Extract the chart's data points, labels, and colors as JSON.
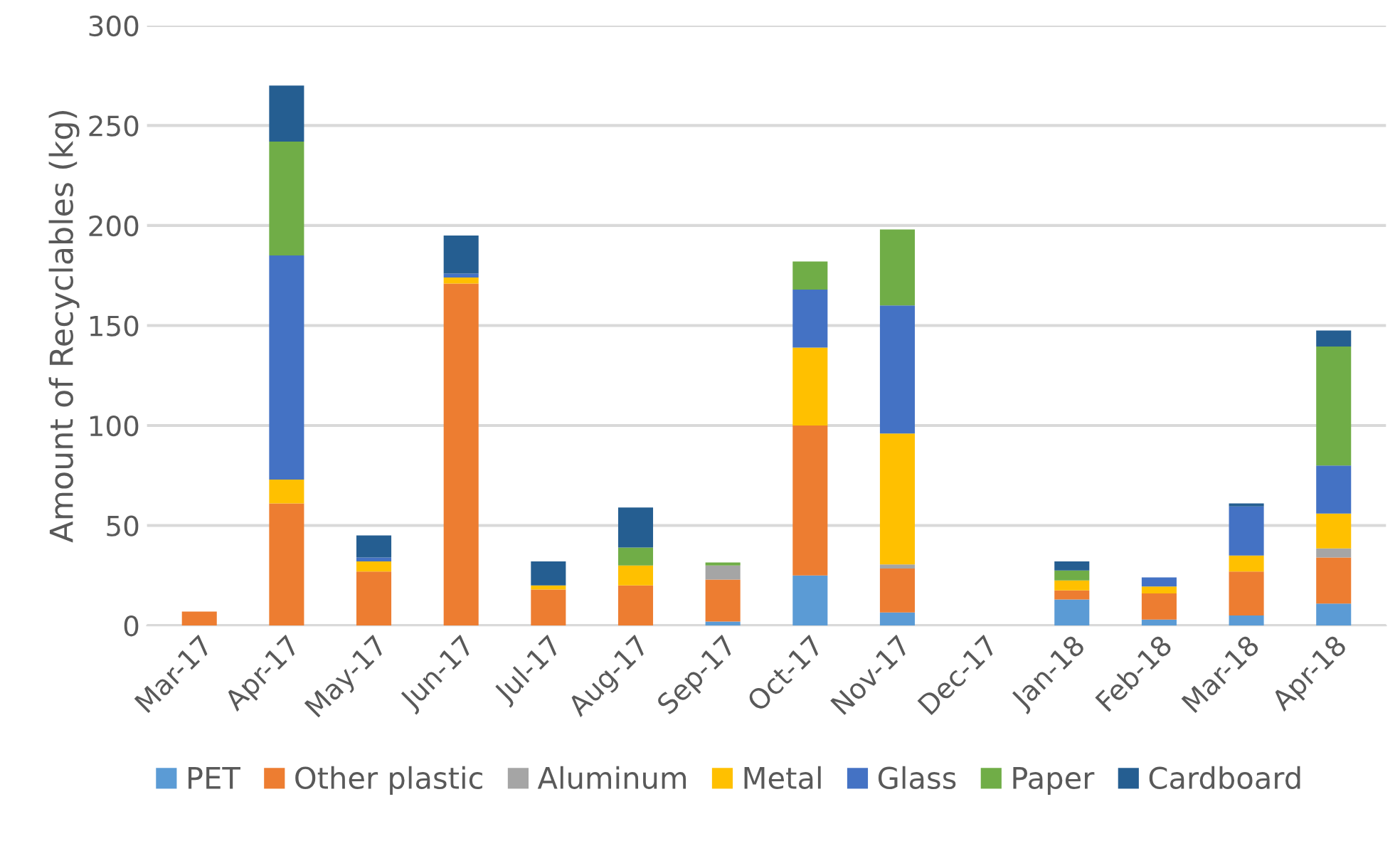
{
  "chart_data": {
    "type": "bar",
    "stacked": true,
    "ylabel": "Amount of Recyclables (kg)",
    "categories": [
      "Mar-17",
      "Apr-17",
      "May-17",
      "Jun-17",
      "Jul-17",
      "Aug-17",
      "Sep-17",
      "Oct-17",
      "Nov-17",
      "Dec-17",
      "Jan-18",
      "Feb-18",
      "Mar-18",
      "Apr-18"
    ],
    "series": [
      {
        "name": "PET",
        "color": "#5b9bd5",
        "values": [
          0,
          0,
          0,
          0,
          0,
          0,
          2,
          25,
          6.5,
          0,
          13,
          3,
          5,
          11
        ]
      },
      {
        "name": "Other plastic",
        "color": "#ed7d31",
        "values": [
          7,
          61,
          27,
          171,
          18,
          20,
          21,
          75,
          22,
          0,
          4.5,
          13,
          22,
          23
        ]
      },
      {
        "name": "Aluminum",
        "color": "#a5a5a5",
        "values": [
          0,
          0,
          0,
          0,
          0,
          0,
          7,
          0,
          2,
          0,
          0,
          0,
          0,
          4.5
        ]
      },
      {
        "name": "Metal",
        "color": "#ffc000",
        "values": [
          0,
          12,
          5,
          3,
          2,
          10,
          0,
          39,
          65.5,
          0,
          5,
          3.5,
          8,
          17.5
        ]
      },
      {
        "name": "Glass",
        "color": "#4472c4",
        "values": [
          0,
          112,
          2,
          2,
          0,
          0,
          0,
          29,
          64,
          0,
          0,
          4.5,
          24.5,
          24
        ]
      },
      {
        "name": "Paper",
        "color": "#70ad47",
        "values": [
          0,
          57,
          0,
          0,
          0,
          9,
          1.5,
          14,
          38,
          0,
          5,
          0,
          0,
          59.5
        ]
      },
      {
        "name": "Cardboard",
        "color": "#255e91",
        "values": [
          0,
          28,
          11,
          19,
          12,
          20,
          0,
          0,
          0,
          0,
          4.5,
          0,
          1.5,
          8
        ]
      }
    ],
    "ylim": [
      0,
      300
    ],
    "yticks": [
      0,
      50,
      100,
      150,
      200,
      250,
      300
    ],
    "grid": "y",
    "legend": "bottom"
  }
}
